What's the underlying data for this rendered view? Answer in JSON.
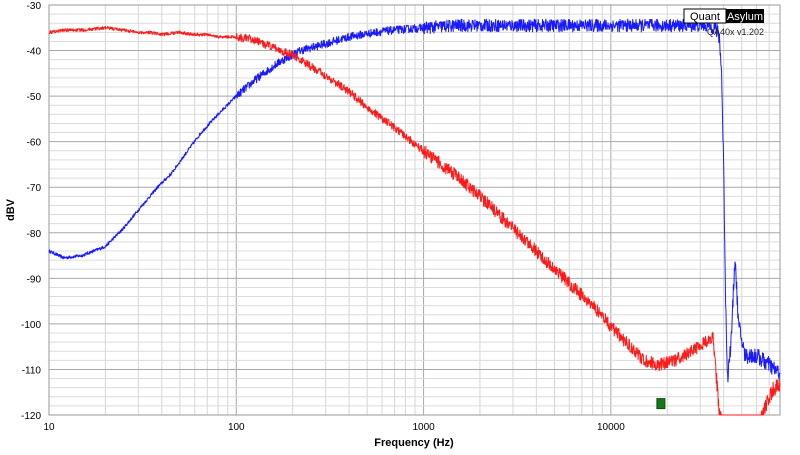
{
  "chart_data": {
    "type": "line",
    "xlabel": "Frequency (Hz)",
    "ylabel": "dBV",
    "xscale": "log",
    "xlim": [
      10,
      80000
    ],
    "ylim": [
      -120,
      -30
    ],
    "x_ticks": [
      10,
      100,
      1000,
      10000
    ],
    "x_tick_labels": [
      "10",
      "100",
      "1000",
      "10000"
    ],
    "y_ticks": [
      -30,
      -40,
      -50,
      -60,
      -70,
      -80,
      -90,
      -100,
      -110,
      -120
    ],
    "y_tick_labels": [
      "-30",
      "-40",
      "-50",
      "-60",
      "-70",
      "-80",
      "-90",
      "-100",
      "-110",
      "-120"
    ],
    "grid": true,
    "series": [
      {
        "color": "#1a1aff",
        "x": [
          10,
          12,
          15,
          20,
          25,
          30,
          38,
          45,
          55,
          65,
          80,
          100,
          130,
          170,
          220,
          300,
          400,
          550,
          700,
          1000,
          1500,
          2000,
          3000,
          5000,
          8000,
          12000,
          18000,
          25000,
          32000,
          36000,
          38000,
          39000,
          40000,
          41000,
          42000,
          44000,
          46000,
          48000,
          52000,
          60000,
          70000,
          80000
        ],
        "y": [
          -84,
          -85.5,
          -85,
          -83,
          -79,
          -75,
          -70,
          -67,
          -62,
          -58,
          -54,
          -50,
          -46,
          -42.5,
          -40,
          -38.5,
          -37,
          -36,
          -35.5,
          -35,
          -34.5,
          -34.5,
          -34.5,
          -34.5,
          -34.5,
          -34.5,
          -34.5,
          -34.5,
          -34.5,
          -35,
          -37,
          -45,
          -65,
          -95,
          -112,
          -103,
          -85,
          -100,
          -107,
          -107,
          -109,
          -111
        ]
      },
      {
        "color": "#ff1a1a",
        "x": [
          10,
          12,
          15,
          20,
          25,
          30,
          35,
          40,
          50,
          60,
          70,
          80,
          100,
          120,
          150,
          200,
          250,
          300,
          400,
          500,
          700,
          1000,
          1500,
          2000,
          3000,
          5000,
          8000,
          10000,
          12000,
          15000,
          18000,
          22000,
          27000,
          32000,
          35000,
          36000,
          37000,
          38000,
          40000,
          60000,
          65000,
          70000,
          75000,
          80000
        ],
        "y": [
          -36,
          -35.5,
          -35.5,
          -35,
          -35.5,
          -36,
          -36,
          -36.5,
          -36,
          -36.5,
          -36.5,
          -37,
          -37,
          -37.5,
          -39,
          -41,
          -43.5,
          -45.5,
          -49,
          -52.5,
          -57,
          -62,
          -67.5,
          -72,
          -79,
          -88,
          -96,
          -100.5,
          -104,
          -108,
          -109,
          -108,
          -106,
          -104,
          -103,
          -108,
          -114,
          -120,
          -123,
          -123,
          -120,
          -116,
          -114,
          -113
        ]
      }
    ],
    "markers": [
      {
        "x": 18500,
        "y": -117.5,
        "color": "#157815"
      }
    ]
  },
  "watermark": {
    "brand_left": "Quant",
    "brand_right": "Asylum",
    "version": "QA40x v1.202"
  }
}
